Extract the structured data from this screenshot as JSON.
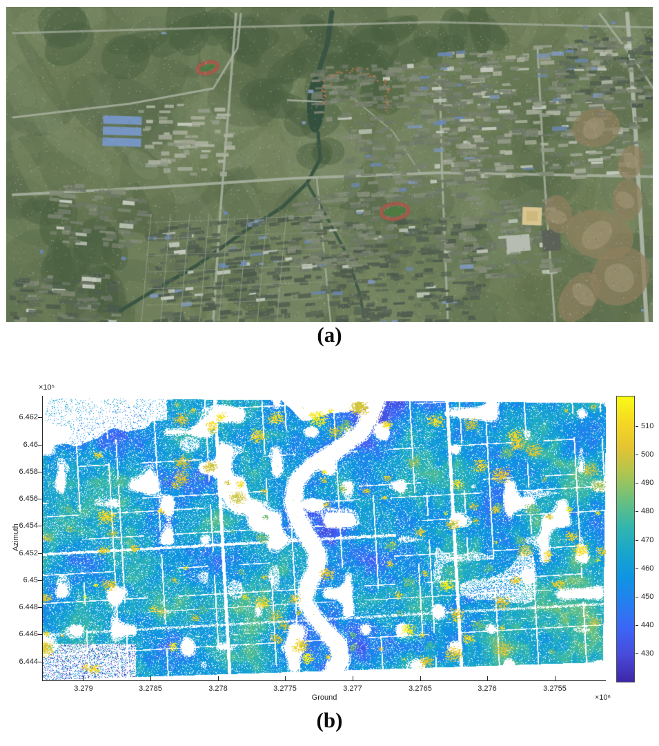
{
  "figure": {
    "caption_a": "(a)",
    "caption_b": "(b)",
    "panel_a_description": "Optical satellite image of the studied urban area with river, road network, residential blocks and bare-soil patches",
    "panel_b_description": "SAR tomography point cloud of the same scene in radar geometry, colored by estimated height"
  },
  "chart_data": {
    "type": "scatter",
    "title": "",
    "xlabel": "Ground",
    "ylabel": "Azimuth",
    "x_exponent_label": "×10⁶",
    "y_exponent_label": "×10⁵",
    "x_axis_direction": "reversed",
    "x_tick_labels": [
      "3.279",
      "3.2785",
      "3.278",
      "3.2775",
      "3.277",
      "3.2765",
      "3.276",
      "3.2755"
    ],
    "x_tick_values": [
      3.279,
      3.2785,
      3.278,
      3.2775,
      3.277,
      3.2765,
      3.276,
      3.2755
    ],
    "x_left_value": 3.2793,
    "x_right_value": 3.27512,
    "y_tick_labels": [
      "6.462",
      "6.46",
      "6.458",
      "6.456",
      "6.454",
      "6.452",
      "6.45",
      "6.448",
      "6.446",
      "6.444"
    ],
    "y_tick_values": [
      6.462,
      6.46,
      6.458,
      6.456,
      6.454,
      6.452,
      6.45,
      6.448,
      6.446,
      6.444
    ],
    "y_top_value": 6.4636,
    "y_bottom_value": 6.4426,
    "grid": false,
    "legend": false,
    "colorbar": {
      "position": "right",
      "tick_labels": [
        "430",
        "440",
        "450",
        "460",
        "470",
        "480",
        "490",
        "500",
        "510"
      ],
      "tick_values": [
        430,
        440,
        450,
        460,
        470,
        480,
        490,
        500,
        510
      ],
      "top_value": 520.7,
      "bottom_value": 419.8,
      "colormap": "parula",
      "colormap_stops": [
        "#3e26a8",
        "#484ad9",
        "#3d64f6",
        "#267ef0",
        "#0f94e3",
        "#18a6cd",
        "#34b6ac",
        "#6ac07f",
        "#acc552",
        "#e3c433",
        "#f5d724",
        "#f9fb15"
      ]
    },
    "point_cloud_note": "Dense scatter of height-coded points: mostly blue/cyan (430-470), teal-green mid values, yellow clusters (500-520) at tall buildings; white gaps along the S-shaped river, road grid and radar shadow areas; sparse region in upper-left corner"
  }
}
